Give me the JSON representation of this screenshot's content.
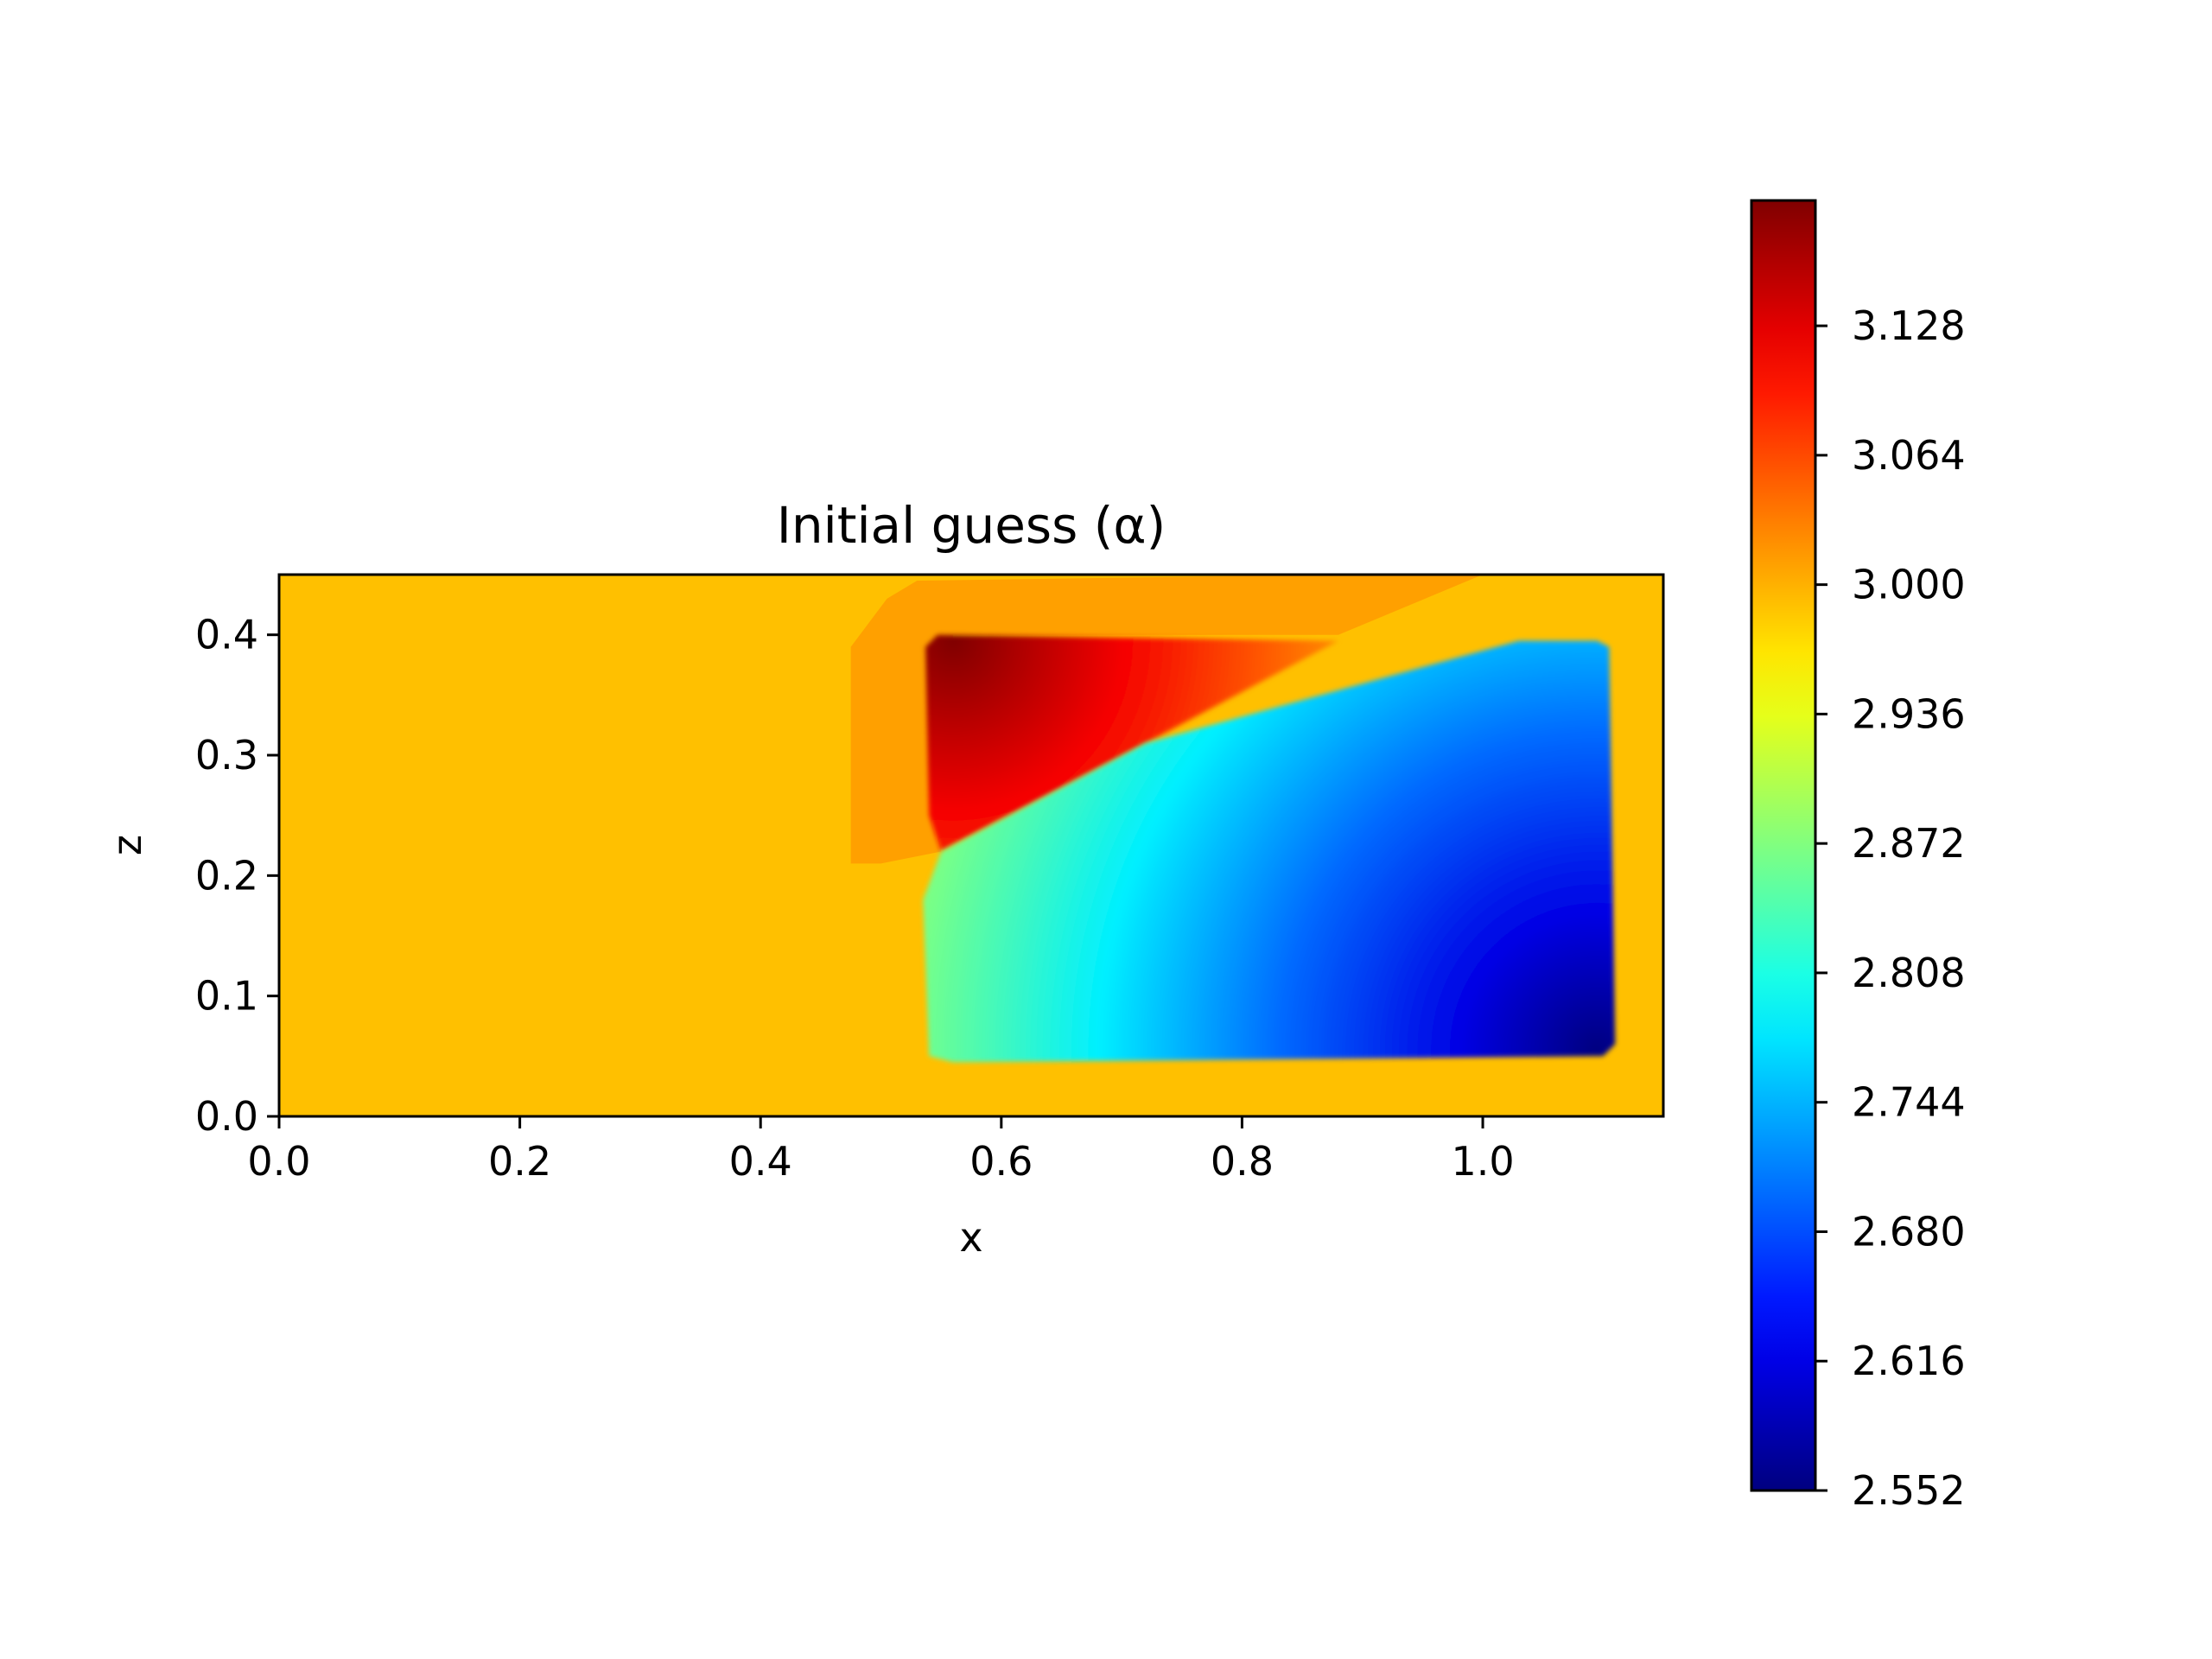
{
  "chart_data": {
    "type": "heatmap",
    "title": "Initial guess (α)",
    "xlabel": "x",
    "ylabel": "z",
    "xlim": [
      0.0,
      1.15
    ],
    "ylim": [
      0.0,
      0.45
    ],
    "x_ticks": [
      "0.0",
      "0.2",
      "0.4",
      "0.6",
      "0.8",
      "1.0"
    ],
    "y_ticks": [
      "0.0",
      "0.1",
      "0.2",
      "0.3",
      "0.4"
    ],
    "colormap": "jet",
    "colorbar": {
      "vmin": 2.552,
      "vmax": 3.19,
      "ticks": [
        "2.552",
        "2.616",
        "2.680",
        "2.744",
        "2.808",
        "2.872",
        "2.936",
        "3.000",
        "3.064",
        "3.128"
      ]
    },
    "background_value": 2.99,
    "regions": [
      {
        "name": "transition-zone",
        "value": 3.01,
        "polygon_xz": [
          [
            0.475,
            0.21
          ],
          [
            0.475,
            0.39
          ],
          [
            0.505,
            0.43
          ],
          [
            0.53,
            0.445
          ],
          [
            0.88,
            0.45
          ],
          [
            1.0,
            0.45
          ],
          [
            0.88,
            0.4
          ],
          [
            0.56,
            0.4
          ],
          [
            0.55,
            0.22
          ],
          [
            0.5,
            0.21
          ]
        ]
      },
      {
        "name": "high-anomaly",
        "value_max": 3.19,
        "value_edge": 2.98,
        "polygon_xz": [
          [
            0.537,
            0.39
          ],
          [
            0.547,
            0.4
          ],
          [
            0.88,
            0.395
          ],
          [
            0.72,
            0.31
          ],
          [
            0.55,
            0.22
          ],
          [
            0.54,
            0.25
          ]
        ]
      },
      {
        "name": "low-anomaly",
        "value_min": 2.552,
        "value_edge": 2.97,
        "polygon_xz": [
          [
            0.54,
            0.05
          ],
          [
            0.56,
            0.045
          ],
          [
            1.1,
            0.05
          ],
          [
            1.11,
            0.06
          ],
          [
            1.105,
            0.39
          ],
          [
            1.095,
            0.395
          ],
          [
            1.03,
            0.395
          ],
          [
            0.72,
            0.31
          ],
          [
            0.55,
            0.22
          ],
          [
            0.535,
            0.18
          ]
        ]
      }
    ]
  }
}
